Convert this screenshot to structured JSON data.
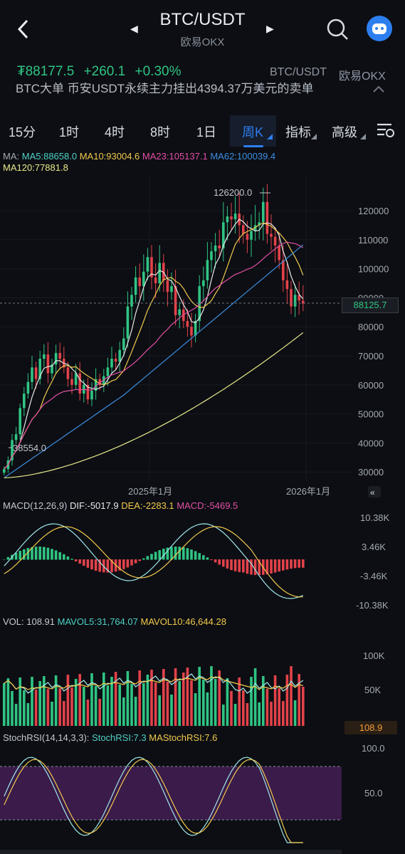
{
  "header": {
    "title": "BTC/USDT",
    "subtitle": "欧易OKX"
  },
  "price": {
    "last": "₮88177.5",
    "change": "+260.1",
    "pct": "+0.30%",
    "pair": "BTC/USDT",
    "exchange": "欧易OKX"
  },
  "ticker": {
    "text": "BTC大单  币安USDT永续主力挂出4394.37万美元的卖单"
  },
  "tabs": [
    {
      "label": "15分"
    },
    {
      "label": "1时"
    },
    {
      "label": "4时"
    },
    {
      "label": "8时"
    },
    {
      "label": "1日"
    },
    {
      "label": "周K"
    },
    {
      "label": "指标"
    },
    {
      "label": "高级"
    }
  ],
  "ma_legend": {
    "ma": "MA:",
    "ma5": "MA5:88658.0",
    "ma10": "MA10:93004.6",
    "ma23": "MA23:105137.1",
    "ma62": "MA62:100039.4",
    "ma120": "MA120:77881.8"
  },
  "main_axis": {
    "labels": [
      "120000",
      "110000",
      "100000",
      "90000",
      "80000",
      "70000",
      "60000",
      "50000",
      "40000",
      "30000"
    ],
    "high_label": "126200.0",
    "low_label": "38554.0",
    "current_price": "88125.7"
  },
  "time_axis": {
    "labels": [
      "2025年1月",
      "2026年1月"
    ]
  },
  "macd": {
    "title": "MACD(12,26,9)",
    "dif": "DIF:-5017.9",
    "dea": "DEA:-2283.1",
    "macd": "MACD:-5469.5",
    "axis": [
      "10.38K",
      "3.46K",
      "-3.46K",
      "-10.38K"
    ]
  },
  "vol": {
    "title": "VOL: 108.91",
    "mavol5": "MAVOL5:31,764.07",
    "mavol10": "MAVOL10:46,644.28",
    "axis": [
      "100K",
      "50K"
    ],
    "current": "108.9"
  },
  "stoch": {
    "title": "StochRSI(14,14,3,3):",
    "k": "StochRSI:7.3",
    "d": "MAStochRSI:7.6",
    "axis": [
      "100.0",
      "50.0"
    ]
  },
  "colors": {
    "up": "#30c483",
    "down": "#e2424a",
    "ma5": "#e9e9e9",
    "ma10": "#f2c94c",
    "ma23": "#e34fa6",
    "ma62": "#3d8ee0",
    "ma120": "#e8e88a",
    "accent": "#2d7ff0"
  }
}
